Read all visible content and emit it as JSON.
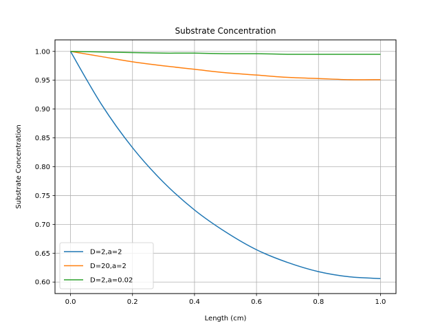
{
  "chart_data": {
    "type": "line",
    "title": "Substrate Concentration",
    "xlabel": "Length (cm)",
    "ylabel": "Substrate Concentration",
    "xlim": [
      -0.05,
      1.05
    ],
    "ylim": [
      0.58,
      1.02
    ],
    "xticks": [
      0.0,
      0.2,
      0.4,
      0.6,
      0.8,
      1.0
    ],
    "xtick_labels": [
      "0.0",
      "0.2",
      "0.4",
      "0.6",
      "0.8",
      "1.0"
    ],
    "yticks": [
      0.6,
      0.65,
      0.7,
      0.75,
      0.8,
      0.85,
      0.9,
      0.95,
      1.0
    ],
    "ytick_labels": [
      "0.60",
      "0.65",
      "0.70",
      "0.75",
      "0.80",
      "0.85",
      "0.90",
      "0.95",
      "1.00"
    ],
    "grid": true,
    "legend_position": "lower-left",
    "x": [
      0.0,
      0.1,
      0.2,
      0.3,
      0.4,
      0.5,
      0.6,
      0.7,
      0.8,
      0.9,
      1.0
    ],
    "series": [
      {
        "name": "D=2,a=2",
        "color": "#1f77b4",
        "values": [
          1.0,
          0.908,
          0.833,
          0.773,
          0.725,
          0.687,
          0.656,
          0.634,
          0.618,
          0.609,
          0.606
        ]
      },
      {
        "name": "D=20,a=2",
        "color": "#ff7f0e",
        "values": [
          1.0,
          0.991,
          0.982,
          0.975,
          0.969,
          0.963,
          0.959,
          0.955,
          0.953,
          0.951,
          0.951
        ]
      },
      {
        "name": "D=2,a=0.02",
        "color": "#2ca02c",
        "values": [
          1.0,
          0.999,
          0.998,
          0.997,
          0.997,
          0.996,
          0.996,
          0.995,
          0.995,
          0.995,
          0.995
        ]
      }
    ]
  }
}
